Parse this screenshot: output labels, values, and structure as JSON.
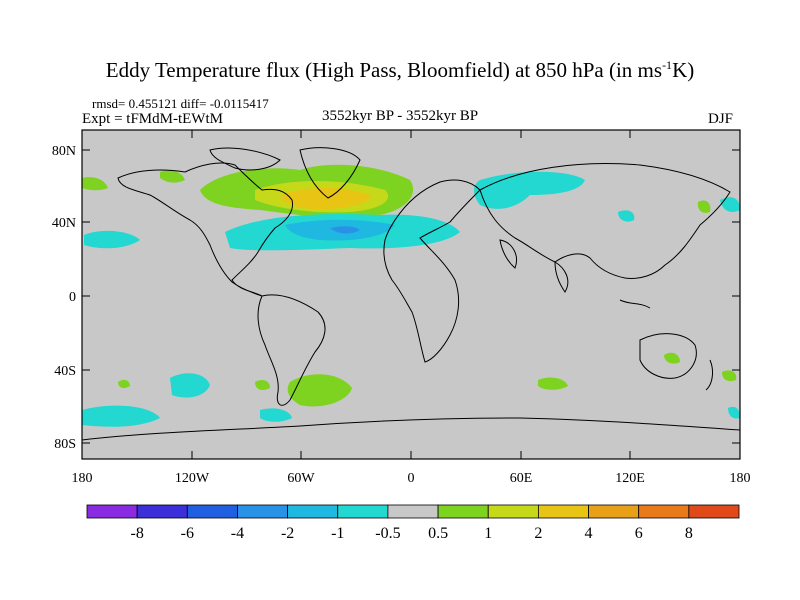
{
  "title": {
    "main": "Eddy Temperature flux (High Pass, Bloomfield) at 850 hPa (in ms",
    "sup": "-1",
    "tail": "K)"
  },
  "stats": "rmsd= 0.455121 diff= -0.0115417",
  "expt": "Expt = tFMdM-tEWtM",
  "period": "3552kyr BP - 3552kyr BP",
  "season": "DJF",
  "lat_labels": [
    "80N",
    "40N",
    "0",
    "40S",
    "80S"
  ],
  "lon_labels": [
    "180",
    "120W",
    "60W",
    "0",
    "60E",
    "120E",
    "180"
  ],
  "colorbar": {
    "labels": [
      "-8",
      "-6",
      "-4",
      "-2",
      "-1",
      "-0.5",
      "0.5",
      "1",
      "2",
      "4",
      "6",
      "8"
    ],
    "colors": [
      "#8a2be2",
      "#3a2fd8",
      "#1f5fe0",
      "#2a92e6",
      "#1fb8e0",
      "#22d8d0",
      "#c8c8c8",
      "#7ed321",
      "#c6d81a",
      "#e8c415",
      "#e8a018",
      "#e87a1a",
      "#e04a1a"
    ]
  },
  "colors": {
    "neutral": "#c8c8c8",
    "frame": "#000000"
  }
}
